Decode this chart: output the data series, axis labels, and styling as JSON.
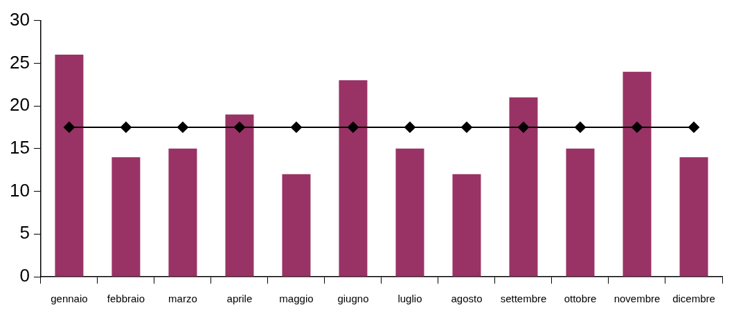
{
  "chart_data": {
    "type": "bar",
    "categories": [
      "gennaio",
      "febbraio",
      "marzo",
      "aprile",
      "maggio",
      "giugno",
      "luglio",
      "agosto",
      "settembre",
      "ottobre",
      "novembre",
      "dicembre"
    ],
    "series": [
      {
        "color": "#993366",
        "values": [
          26,
          14,
          15,
          19,
          12,
          23,
          15,
          12,
          21,
          15,
          24,
          14
        ]
      },
      {
        "type": "line",
        "color": "#000000",
        "marker": "diamond",
        "line_style": "solid",
        "values": [
          17.5,
          17.5,
          17.5,
          17.5,
          17.5,
          17.5,
          17.5,
          17.5,
          17.5,
          17.5,
          17.5,
          17.5
        ]
      }
    ],
    "ylim": [
      0,
      30
    ],
    "yticks": [
      0,
      5,
      10,
      15,
      20,
      25,
      30
    ],
    "grid": false,
    "legend": false
  }
}
